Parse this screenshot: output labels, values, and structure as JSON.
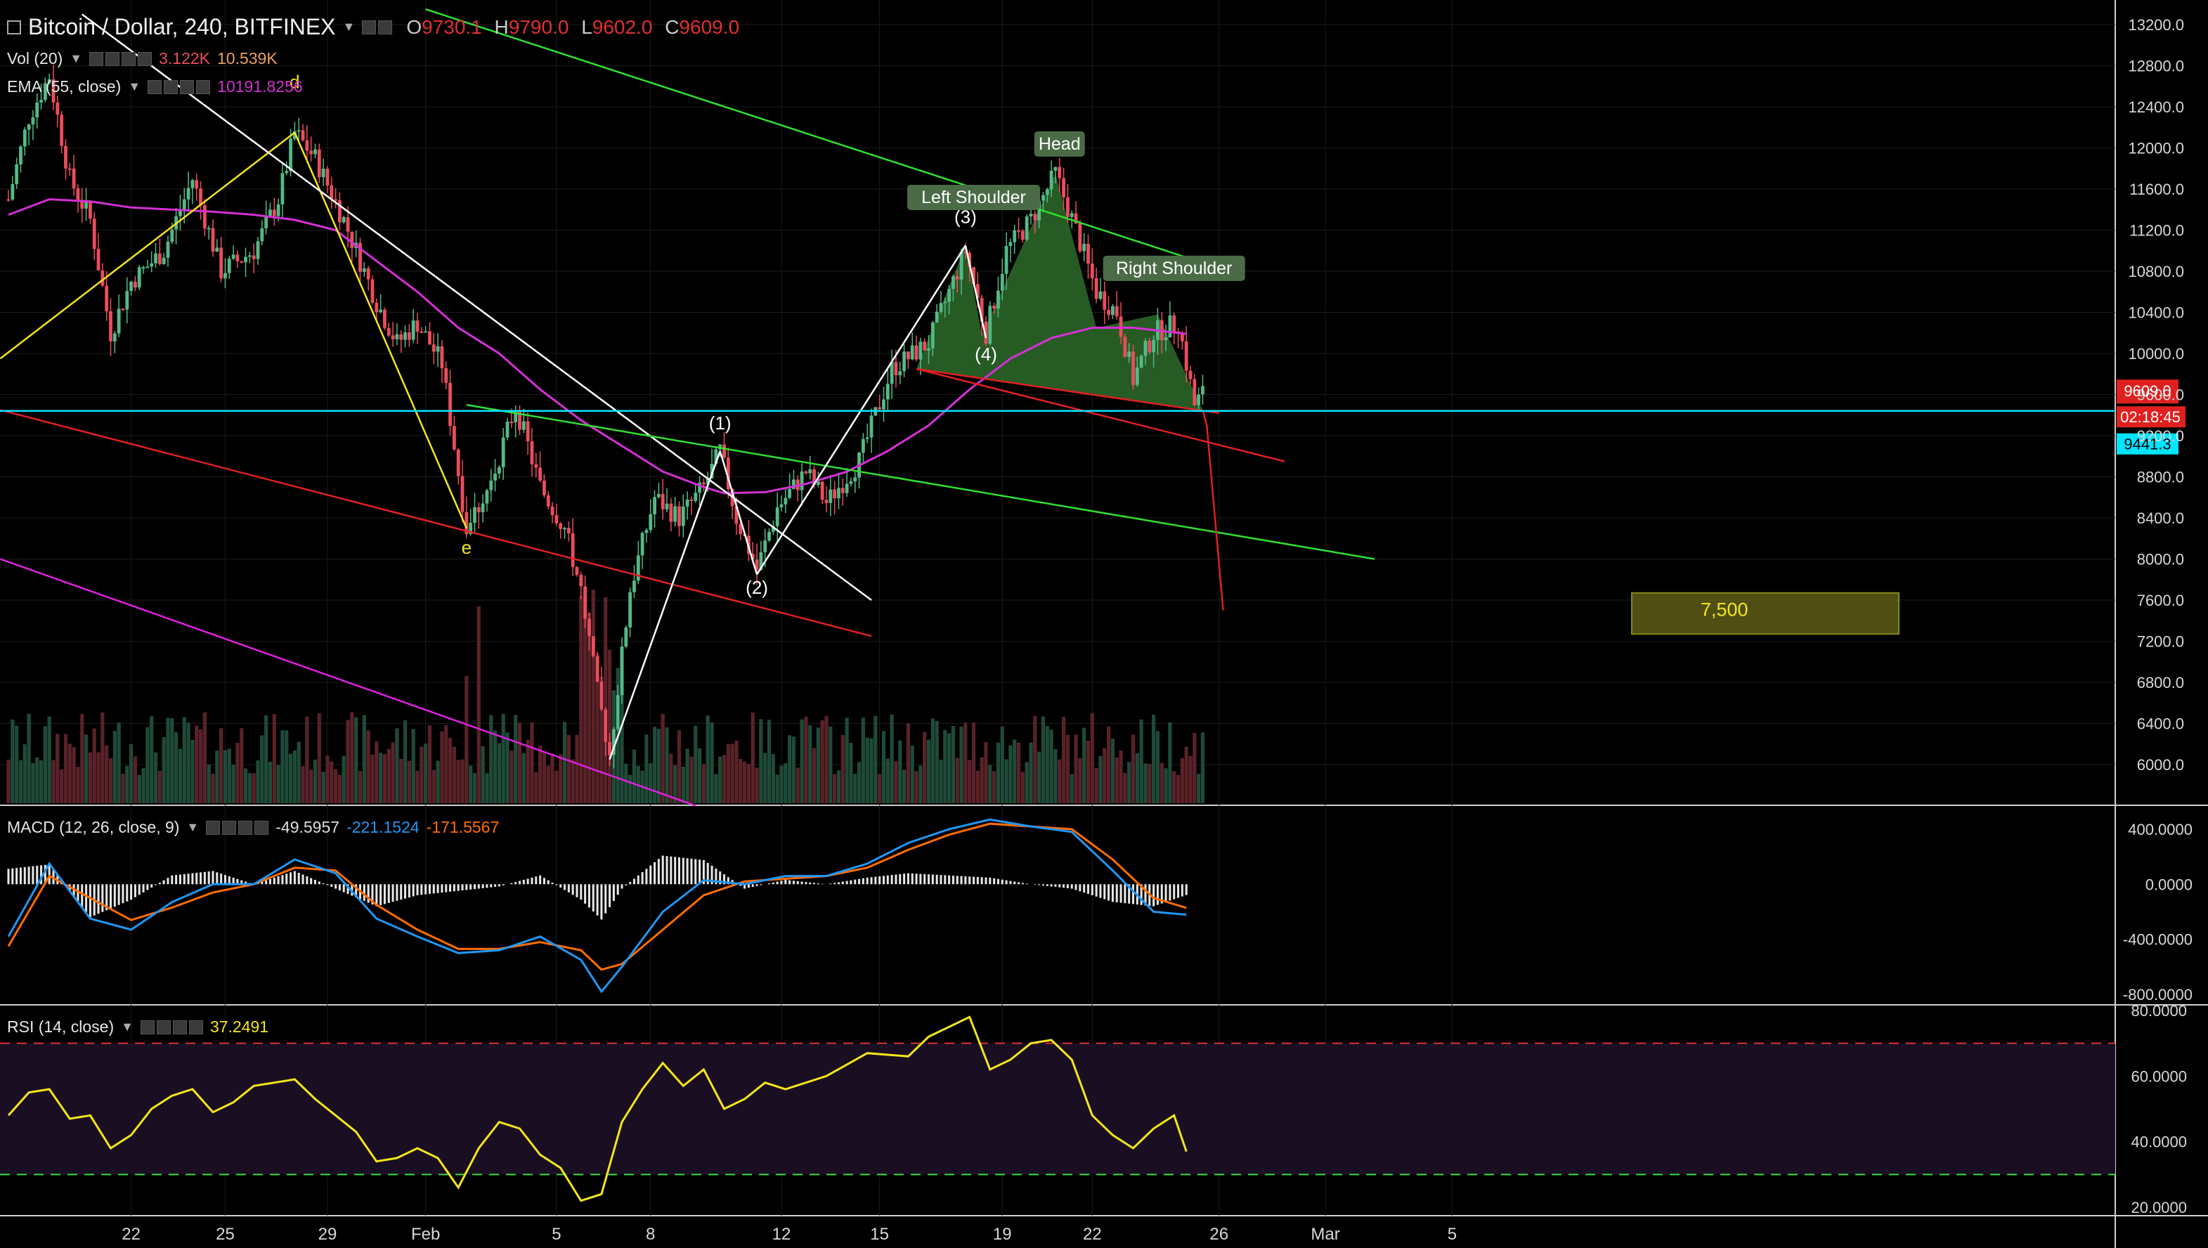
{
  "header": {
    "symbol": "Bitcoin / Dollar, 240, BITFINEX",
    "open_label": "O",
    "open": "9730.1",
    "high_label": "H",
    "high": "9790.0",
    "low_label": "L",
    "low": "9602.0",
    "close_label": "C",
    "close": "9609.0"
  },
  "indicators": {
    "vol": {
      "label": "Vol (20)",
      "v1": "3.122K",
      "v2": "10.539K"
    },
    "ema": {
      "label": "EMA (55, close)",
      "value": "10191.8256"
    },
    "macd": {
      "label": "MACD (12, 26, close, 9)",
      "hist": "-49.5957",
      "macd": "-221.1524",
      "signal": "-171.5567"
    },
    "rsi": {
      "label": "RSI (14, close)",
      "value": "37.2491"
    }
  },
  "colors": {
    "background": "#000000",
    "up": "#53b987",
    "down": "#eb4d5c",
    "ema": "#d430d4",
    "macd_line": "#2196f3",
    "signal_line": "#ff6d00",
    "rsi_line": "#f5e51b",
    "price_line": "#00e5ff",
    "grid": "#1c1c1c"
  },
  "chart_data": [
    {
      "type": "candlestick",
      "title": "Bitcoin / Dollar, 240, BITFINEX",
      "y_ticks": [
        13200,
        12800,
        12400,
        12000,
        11600,
        11200,
        10800,
        10400,
        10000,
        9600,
        9200,
        8800,
        8400,
        8000,
        7600,
        7200,
        6800,
        6400,
        6000
      ],
      "y_tick_labels": [
        "13200.0",
        "12800.0",
        "12400.0",
        "12000.0",
        "11600.0",
        "11200.0",
        "10800.0",
        "10400.0",
        "10000.0",
        "9600.0",
        "9200.0",
        "8800.0",
        "8400.0",
        "8000.0",
        "7600.0",
        "7200.0",
        "6800.0",
        "6400.0",
        "6000.0"
      ],
      "ylim": [
        5640,
        13400
      ],
      "x_tick_labels": [
        "22",
        "25",
        "29",
        "Feb",
        "5",
        "8",
        "12",
        "15",
        "19",
        "22",
        "26",
        "Mar",
        "5"
      ],
      "x_tick_bars": [
        30,
        53,
        78,
        102,
        134,
        157,
        189,
        213,
        243,
        265,
        296,
        322,
        353
      ],
      "last_price": {
        "value": 9609.0,
        "label": "9609.0",
        "countdown": "02:18:45"
      },
      "price_line": {
        "value": 9441.3,
        "label": "9441.3"
      },
      "ema_series": [
        [
          0,
          11350
        ],
        [
          10,
          11500
        ],
        [
          20,
          11480
        ],
        [
          30,
          11420
        ],
        [
          40,
          11400
        ],
        [
          50,
          11380
        ],
        [
          60,
          11350
        ],
        [
          70,
          11300
        ],
        [
          80,
          11200
        ],
        [
          90,
          10900
        ],
        [
          100,
          10600
        ],
        [
          110,
          10250
        ],
        [
          120,
          10000
        ],
        [
          130,
          9650
        ],
        [
          140,
          9350
        ],
        [
          150,
          9100
        ],
        [
          160,
          8850
        ],
        [
          170,
          8700
        ],
        [
          175,
          8640
        ],
        [
          185,
          8650
        ],
        [
          195,
          8730
        ],
        [
          205,
          8850
        ],
        [
          215,
          9050
        ],
        [
          225,
          9300
        ],
        [
          235,
          9650
        ],
        [
          245,
          9950
        ],
        [
          255,
          10150
        ],
        [
          265,
          10250
        ],
        [
          275,
          10250
        ],
        [
          288,
          10191
        ]
      ],
      "patterns": {
        "elliott_labels": [
          {
            "text": "d",
            "bar": 70,
            "price": 12580
          },
          {
            "text": "e",
            "bar": 112,
            "price": 8050
          },
          {
            "text": "(1)",
            "bar": 174,
            "price": 9260
          },
          {
            "text": "(2)",
            "bar": 183,
            "price": 7660
          },
          {
            "text": "(3)",
            "bar": 234,
            "price": 11270
          },
          {
            "text": "(4)",
            "bar": 239,
            "price": 9930
          }
        ],
        "hs_labels": [
          {
            "text": "Left Shoulder",
            "bar": 236,
            "price": 11450
          },
          {
            "text": "Head",
            "bar": 257,
            "price": 11970
          },
          {
            "text": "Right Shoulder",
            "bar": 285,
            "price": 10760
          }
        ],
        "target": {
          "label": "7,500",
          "price_low": 7270,
          "price_high": 7670
        }
      },
      "series": [
        {
          "name": "Bitcoin / Dollar",
          "values_note": "OHLC candles generated along path"
        }
      ]
    },
    {
      "type": "line",
      "title": "MACD (12, 26, close, 9)",
      "y_tick_labels": [
        "400.0000",
        "0.0000",
        "-400.0000",
        "-800.0000"
      ],
      "y_ticks": [
        400,
        0,
        -400,
        -800
      ],
      "ylim": [
        -800,
        560
      ],
      "series": [
        {
          "name": "MACD",
          "values": [
            [
              0,
              -380
            ],
            [
              10,
              150
            ],
            [
              20,
              -250
            ],
            [
              30,
              -330
            ],
            [
              40,
              -130
            ],
            [
              50,
              0
            ],
            [
              60,
              0
            ],
            [
              70,
              180
            ],
            [
              80,
              80
            ],
            [
              90,
              -250
            ],
            [
              100,
              -380
            ],
            [
              110,
              -500
            ],
            [
              120,
              -480
            ],
            [
              130,
              -380
            ],
            [
              140,
              -550
            ],
            [
              145,
              -780
            ],
            [
              150,
              -600
            ],
            [
              160,
              -200
            ],
            [
              170,
              30
            ],
            [
              180,
              0
            ],
            [
              190,
              60
            ],
            [
              200,
              60
            ],
            [
              210,
              150
            ],
            [
              220,
              300
            ],
            [
              230,
              400
            ],
            [
              240,
              470
            ],
            [
              250,
              420
            ],
            [
              260,
              380
            ],
            [
              270,
              100
            ],
            [
              280,
              -200
            ],
            [
              288,
              -221
            ]
          ]
        },
        {
          "name": "Signal",
          "values": [
            [
              0,
              -450
            ],
            [
              10,
              60
            ],
            [
              20,
              -100
            ],
            [
              30,
              -260
            ],
            [
              40,
              -170
            ],
            [
              50,
              -60
            ],
            [
              60,
              0
            ],
            [
              70,
              120
            ],
            [
              80,
              100
            ],
            [
              90,
              -150
            ],
            [
              100,
              -330
            ],
            [
              110,
              -470
            ],
            [
              120,
              -470
            ],
            [
              130,
              -420
            ],
            [
              140,
              -480
            ],
            [
              145,
              -620
            ],
            [
              150,
              -580
            ],
            [
              160,
              -330
            ],
            [
              170,
              -80
            ],
            [
              180,
              20
            ],
            [
              190,
              40
            ],
            [
              200,
              60
            ],
            [
              210,
              120
            ],
            [
              220,
              250
            ],
            [
              230,
              360
            ],
            [
              240,
              440
            ],
            [
              250,
              420
            ],
            [
              260,
              400
            ],
            [
              270,
              180
            ],
            [
              280,
              -100
            ],
            [
              288,
              -172
            ]
          ]
        }
      ]
    },
    {
      "type": "line",
      "title": "RSI (14, close)",
      "y_tick_labels": [
        "80.0000",
        "60.0000",
        "40.0000",
        "20.0000"
      ],
      "y_ticks": [
        80,
        60,
        40,
        20
      ],
      "ylim": [
        18,
        82
      ],
      "bands": [
        70,
        30
      ],
      "series": [
        {
          "name": "RSI",
          "values": [
            [
              0,
              48
            ],
            [
              5,
              55
            ],
            [
              10,
              56
            ],
            [
              15,
              47
            ],
            [
              20,
              48
            ],
            [
              25,
              38
            ],
            [
              30,
              42
            ],
            [
              35,
              50
            ],
            [
              40,
              54
            ],
            [
              45,
              56
            ],
            [
              50,
              49
            ],
            [
              55,
              52
            ],
            [
              60,
              57
            ],
            [
              65,
              58
            ],
            [
              70,
              59
            ],
            [
              75,
              53
            ],
            [
              80,
              48
            ],
            [
              85,
              43
            ],
            [
              90,
              34
            ],
            [
              95,
              35
            ],
            [
              100,
              38
            ],
            [
              105,
              35
            ],
            [
              110,
              26
            ],
            [
              115,
              38
            ],
            [
              120,
              46
            ],
            [
              125,
              44
            ],
            [
              130,
              36
            ],
            [
              135,
              32
            ],
            [
              140,
              22
            ],
            [
              145,
              24
            ],
            [
              150,
              46
            ],
            [
              155,
              56
            ],
            [
              160,
              64
            ],
            [
              165,
              57
            ],
            [
              170,
              62
            ],
            [
              175,
              50
            ],
            [
              180,
              53
            ],
            [
              185,
              58
            ],
            [
              190,
              56
            ],
            [
              200,
              60
            ],
            [
              210,
              67
            ],
            [
              220,
              66
            ],
            [
              225,
              72
            ],
            [
              230,
              75
            ],
            [
              235,
              78
            ],
            [
              240,
              62
            ],
            [
              245,
              65
            ],
            [
              250,
              70
            ],
            [
              255,
              71
            ],
            [
              260,
              65
            ],
            [
              265,
              48
            ],
            [
              270,
              42
            ],
            [
              275,
              38
            ],
            [
              280,
              44
            ],
            [
              285,
              48
            ],
            [
              288,
              37
            ]
          ]
        }
      ]
    }
  ]
}
